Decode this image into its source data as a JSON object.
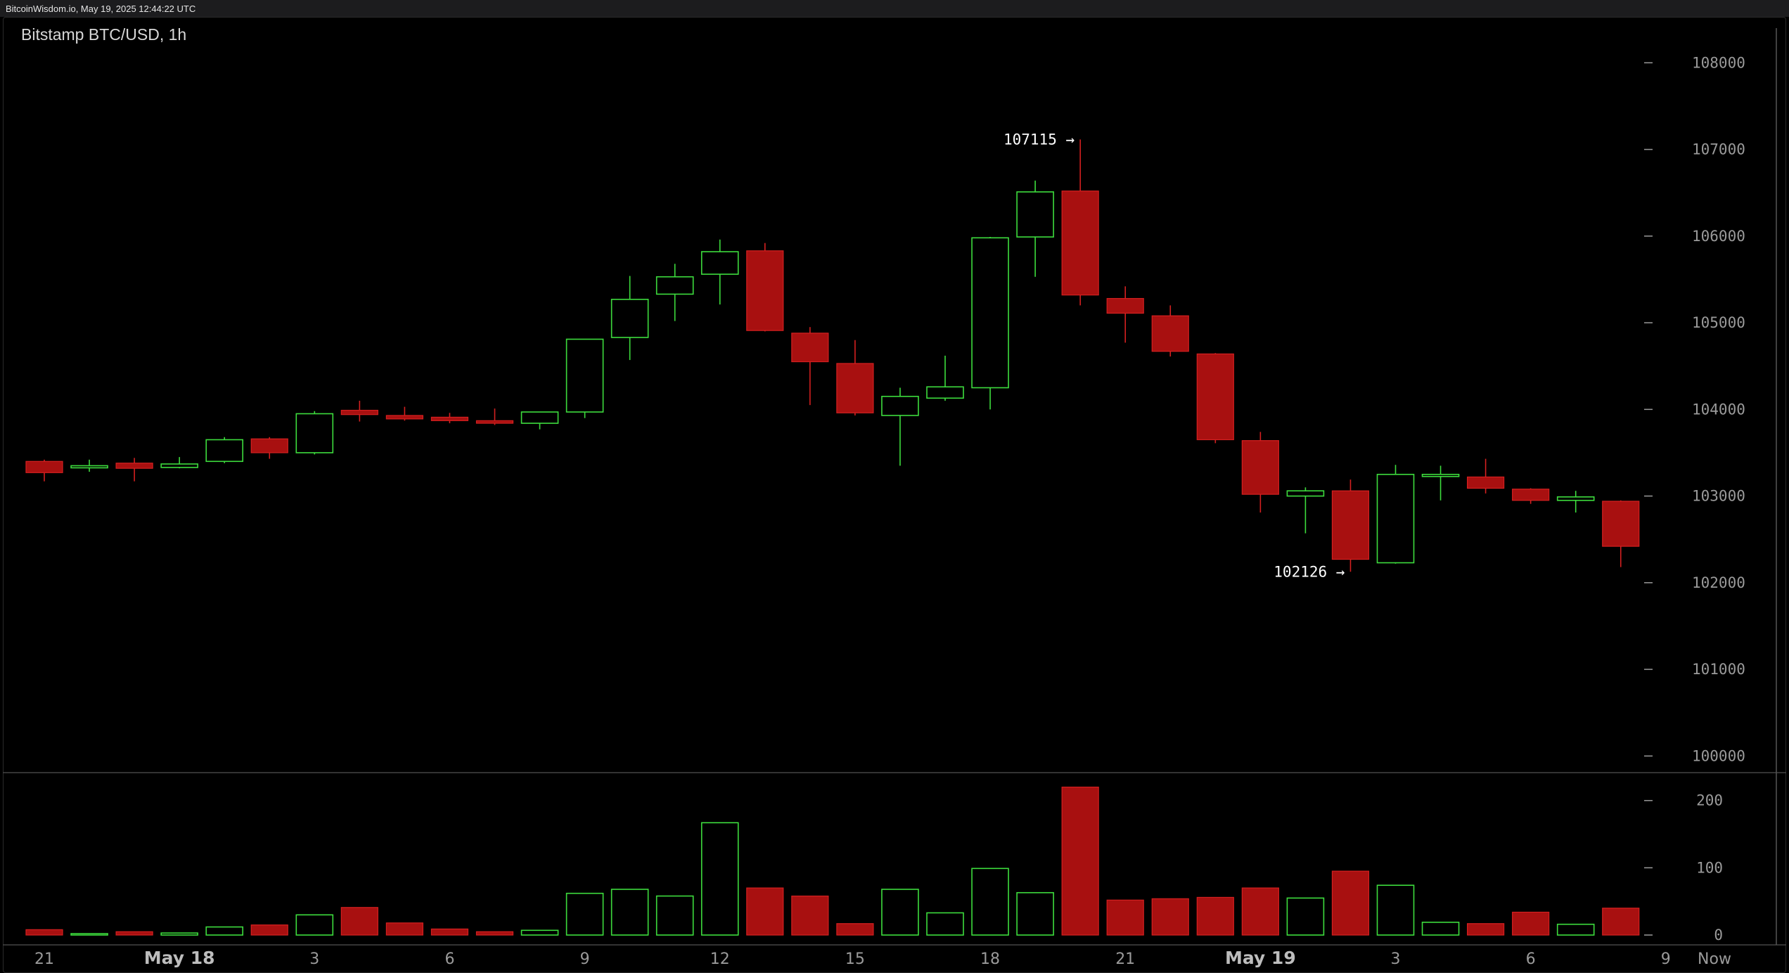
{
  "header": {
    "timestamp": "BitcoinWisdom.io, May 19, 2025 12:44:22 UTC"
  },
  "chart_data": {
    "type": "candlestick",
    "title": "Bitstamp BTC/USD, 1h",
    "ylim": [
      99800,
      108400
    ],
    "price_ticks": [
      "100000",
      "101000",
      "102000",
      "103000",
      "104000",
      "105000",
      "106000",
      "107000",
      "108000"
    ],
    "volume_ylim": [
      0,
      230
    ],
    "volume_ticks": [
      "0",
      "100",
      "200"
    ],
    "x_labels": [
      {
        "text": "21",
        "index": 0,
        "bold": false
      },
      {
        "text": "May 18",
        "index": 3,
        "bold": true
      },
      {
        "text": "3",
        "index": 6,
        "bold": false
      },
      {
        "text": "6",
        "index": 9,
        "bold": false
      },
      {
        "text": "9",
        "index": 12,
        "bold": false
      },
      {
        "text": "12",
        "index": 15,
        "bold": false
      },
      {
        "text": "15",
        "index": 18,
        "bold": false
      },
      {
        "text": "18",
        "index": 21,
        "bold": false
      },
      {
        "text": "21",
        "index": 24,
        "bold": false
      },
      {
        "text": "May 19",
        "index": 27,
        "bold": true
      },
      {
        "text": "3",
        "index": 30,
        "bold": false
      },
      {
        "text": "6",
        "index": 33,
        "bold": false
      },
      {
        "text": "9",
        "index": 36,
        "bold": false
      }
    ],
    "now_label": "Now",
    "annotations": [
      {
        "text": "107115 →",
        "index": 23,
        "price": 107115
      },
      {
        "text": "102126 →",
        "index": 29,
        "price": 102126
      }
    ],
    "colors": {
      "up": "#3ddc3d",
      "down": "#a81010",
      "down_edge": "#d42020",
      "grid": "#333333",
      "axis": "#9a9a9a"
    },
    "candles": [
      {
        "o": 103400,
        "h": 103420,
        "l": 103170,
        "c": 103270,
        "v": 8
      },
      {
        "o": 103330,
        "h": 103420,
        "l": 103280,
        "c": 103350,
        "v": 2
      },
      {
        "o": 103380,
        "h": 103440,
        "l": 103170,
        "c": 103320,
        "v": 5
      },
      {
        "o": 103330,
        "h": 103450,
        "l": 103320,
        "c": 103370,
        "v": 3
      },
      {
        "o": 103400,
        "h": 103680,
        "l": 103380,
        "c": 103650,
        "v": 12
      },
      {
        "o": 103660,
        "h": 103680,
        "l": 103430,
        "c": 103500,
        "v": 15
      },
      {
        "o": 103500,
        "h": 103980,
        "l": 103480,
        "c": 103950,
        "v": 30
      },
      {
        "o": 103990,
        "h": 104100,
        "l": 103860,
        "c": 103940,
        "v": 41
      },
      {
        "o": 103930,
        "h": 104030,
        "l": 103870,
        "c": 103890,
        "v": 18
      },
      {
        "o": 103910,
        "h": 103960,
        "l": 103840,
        "c": 103870,
        "v": 9
      },
      {
        "o": 103870,
        "h": 104010,
        "l": 103820,
        "c": 103840,
        "v": 5
      },
      {
        "o": 103840,
        "h": 103970,
        "l": 103770,
        "c": 103970,
        "v": 7
      },
      {
        "o": 103970,
        "h": 104800,
        "l": 103900,
        "c": 104810,
        "v": 62
      },
      {
        "o": 104830,
        "h": 105540,
        "l": 104570,
        "c": 105270,
        "v": 68
      },
      {
        "o": 105330,
        "h": 105680,
        "l": 105020,
        "c": 105530,
        "v": 58
      },
      {
        "o": 105560,
        "h": 105960,
        "l": 105210,
        "c": 105820,
        "v": 167
      },
      {
        "o": 105830,
        "h": 105920,
        "l": 104900,
        "c": 104910,
        "v": 70
      },
      {
        "o": 104880,
        "h": 104950,
        "l": 104050,
        "c": 104550,
        "v": 58
      },
      {
        "o": 104530,
        "h": 104800,
        "l": 103930,
        "c": 103960,
        "v": 17
      },
      {
        "o": 103930,
        "h": 104250,
        "l": 103350,
        "c": 104150,
        "v": 68
      },
      {
        "o": 104130,
        "h": 104620,
        "l": 104100,
        "c": 104260,
        "v": 33
      },
      {
        "o": 104250,
        "h": 105990,
        "l": 104000,
        "c": 105980,
        "v": 99
      },
      {
        "o": 105990,
        "h": 106640,
        "l": 105530,
        "c": 106510,
        "v": 63
      },
      {
        "o": 106520,
        "h": 107115,
        "l": 105200,
        "c": 105320,
        "v": 220
      },
      {
        "o": 105280,
        "h": 105420,
        "l": 104770,
        "c": 105110,
        "v": 52
      },
      {
        "o": 105080,
        "h": 105200,
        "l": 104610,
        "c": 104670,
        "v": 54
      },
      {
        "o": 104640,
        "h": 104650,
        "l": 103610,
        "c": 103650,
        "v": 56
      },
      {
        "o": 103640,
        "h": 103740,
        "l": 102810,
        "c": 103020,
        "v": 70
      },
      {
        "o": 103000,
        "h": 103100,
        "l": 102570,
        "c": 103060,
        "v": 55
      },
      {
        "o": 103060,
        "h": 103190,
        "l": 102126,
        "c": 102270,
        "v": 95
      },
      {
        "o": 102230,
        "h": 103360,
        "l": 102220,
        "c": 103250,
        "v": 74
      },
      {
        "o": 103230,
        "h": 103350,
        "l": 102950,
        "c": 103250,
        "v": 19
      },
      {
        "o": 103220,
        "h": 103430,
        "l": 103030,
        "c": 103090,
        "v": 17
      },
      {
        "o": 103080,
        "h": 103090,
        "l": 102910,
        "c": 102950,
        "v": 34
      },
      {
        "o": 102950,
        "h": 103060,
        "l": 102810,
        "c": 102990,
        "v": 16
      },
      {
        "o": 102940,
        "h": 102950,
        "l": 102180,
        "c": 102420,
        "v": 40
      }
    ]
  }
}
